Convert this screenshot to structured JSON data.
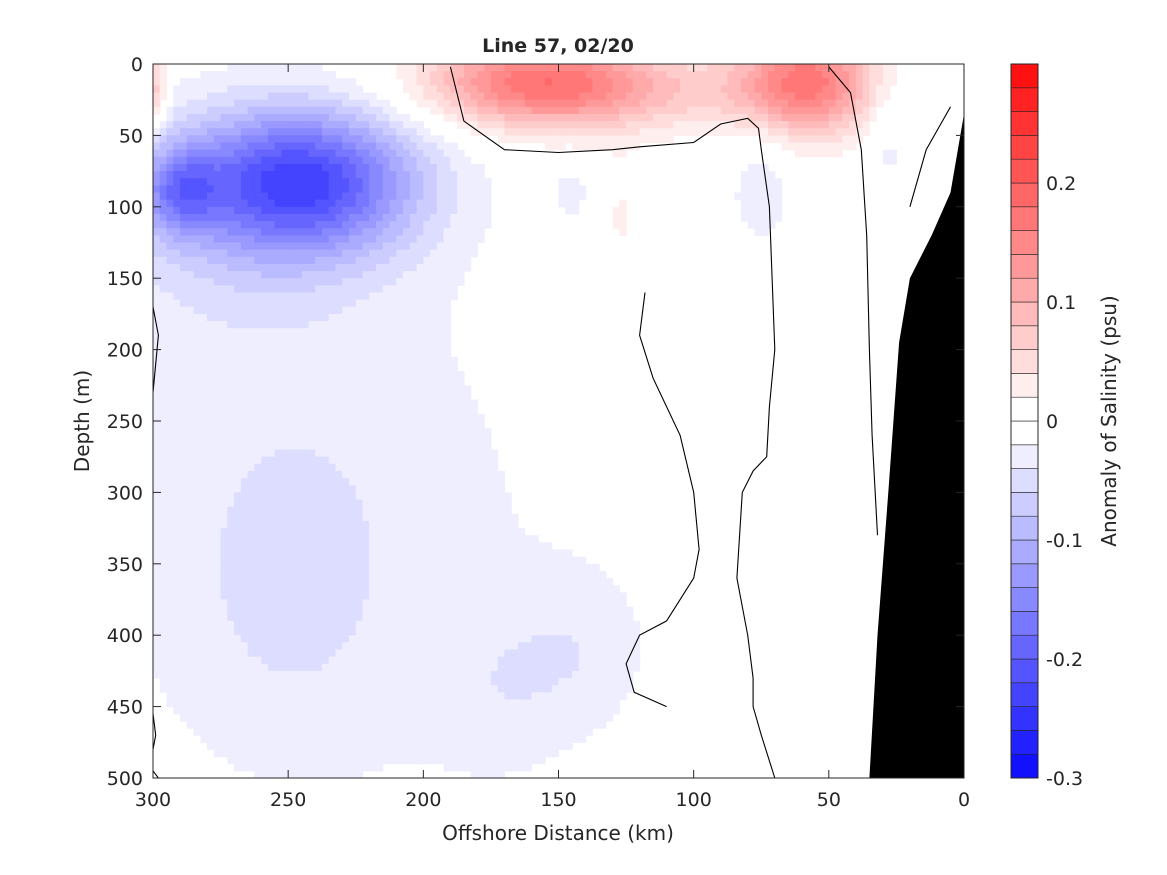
{
  "chart_data": {
    "type": "heatmap",
    "title": "Line 57, 02/20",
    "xlabel": "Offshore Distance (km)",
    "ylabel": "Depth (m)",
    "colorbar_label": "Anomaly of Salinity (psu)",
    "xlim": [
      300,
      0
    ],
    "ylim": [
      0,
      500
    ],
    "x_reversed": true,
    "y_reversed": true,
    "clim": [
      -0.3,
      0.3
    ],
    "x_ticks": [
      300,
      250,
      200,
      150,
      100,
      50,
      0
    ],
    "y_ticks": [
      0,
      50,
      100,
      150,
      200,
      250,
      300,
      350,
      400,
      450,
      500
    ],
    "colorbar_ticks": [
      -0.3,
      -0.2,
      -0.1,
      0,
      0.1,
      0.2
    ],
    "colorbar_tick_labels": [
      "-0.3",
      "-0.2",
      "-0.1",
      "0",
      "0.1",
      "0.2"
    ],
    "contour_step": 0.02,
    "grid": false,
    "colors": {
      "negative": "#0000ff",
      "zero": "#ffffff",
      "positive": "#ff0000",
      "bathymetry": "#000000",
      "zero_contour": "#000000"
    },
    "features": [
      {
        "name": "offshore-fresh-core",
        "x_km": 245,
        "depth_m": 80,
        "value": -0.22
      },
      {
        "name": "edge-fresh-core",
        "x_km": 290,
        "depth_m": 85,
        "value": -0.25
      },
      {
        "name": "surface-salty-core-1",
        "x_km": 155,
        "depth_m": 15,
        "value": 0.14
      },
      {
        "name": "surface-salty-core-2",
        "x_km": 55,
        "depth_m": 15,
        "value": 0.18
      },
      {
        "name": "edge-salty-patch",
        "x_km": 298,
        "depth_m": 20,
        "value": 0.06
      }
    ],
    "bathymetry": [
      [
        35,
        500
      ],
      [
        32,
        400
      ],
      [
        28,
        300
      ],
      [
        24,
        195
      ],
      [
        20,
        150
      ],
      [
        12,
        120
      ],
      [
        5,
        90
      ],
      [
        0,
        35
      ]
    ]
  }
}
